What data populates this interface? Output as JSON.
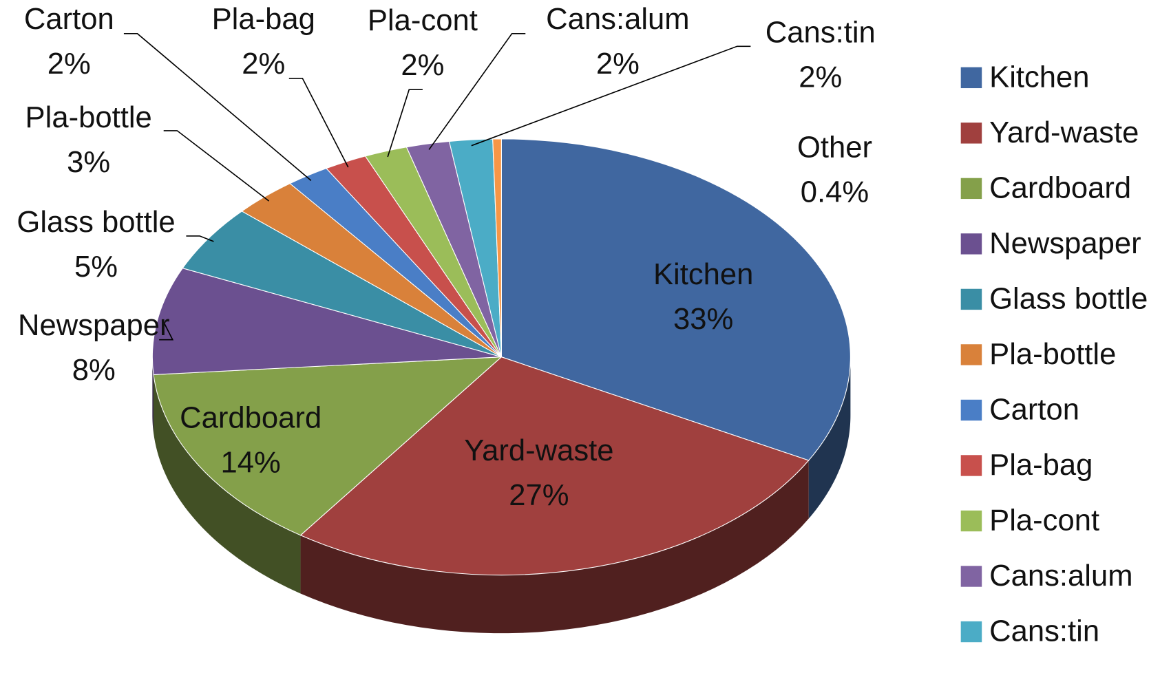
{
  "chart_data": {
    "type": "pie",
    "categories": [
      "Kitchen",
      "Yard-waste",
      "Cardboard",
      "Newspaper",
      "Glass bottle",
      "Pla-bottle",
      "Carton",
      "Pla-bag",
      "Pla-cont",
      "Cans:alum",
      "Cans:tin",
      "Other"
    ],
    "values": [
      33,
      27,
      14,
      8,
      5,
      3,
      2,
      2,
      2,
      2,
      2,
      0.4
    ],
    "value_labels": [
      "33%",
      "27%",
      "14%",
      "8%",
      "5%",
      "3%",
      "2%",
      "2%",
      "2%",
      "2%",
      "2%",
      "0.4%"
    ],
    "colors": [
      "#4067a0",
      "#a0403e",
      "#84a04a",
      "#6b5090",
      "#3a8ea5",
      "#d9813a",
      "#4a7ec6",
      "#c8504c",
      "#9bbd59",
      "#8064a2",
      "#4bacc6",
      "#f79646"
    ],
    "legend_entries": [
      "Kitchen",
      "Yard-waste",
      "Cardboard",
      "Newspaper",
      "Glass bottle",
      "Pla-bottle",
      "Carton",
      "Pla-bag",
      "Pla-cont",
      "Cans:alum",
      "Cans:tin"
    ],
    "legend": "right"
  }
}
